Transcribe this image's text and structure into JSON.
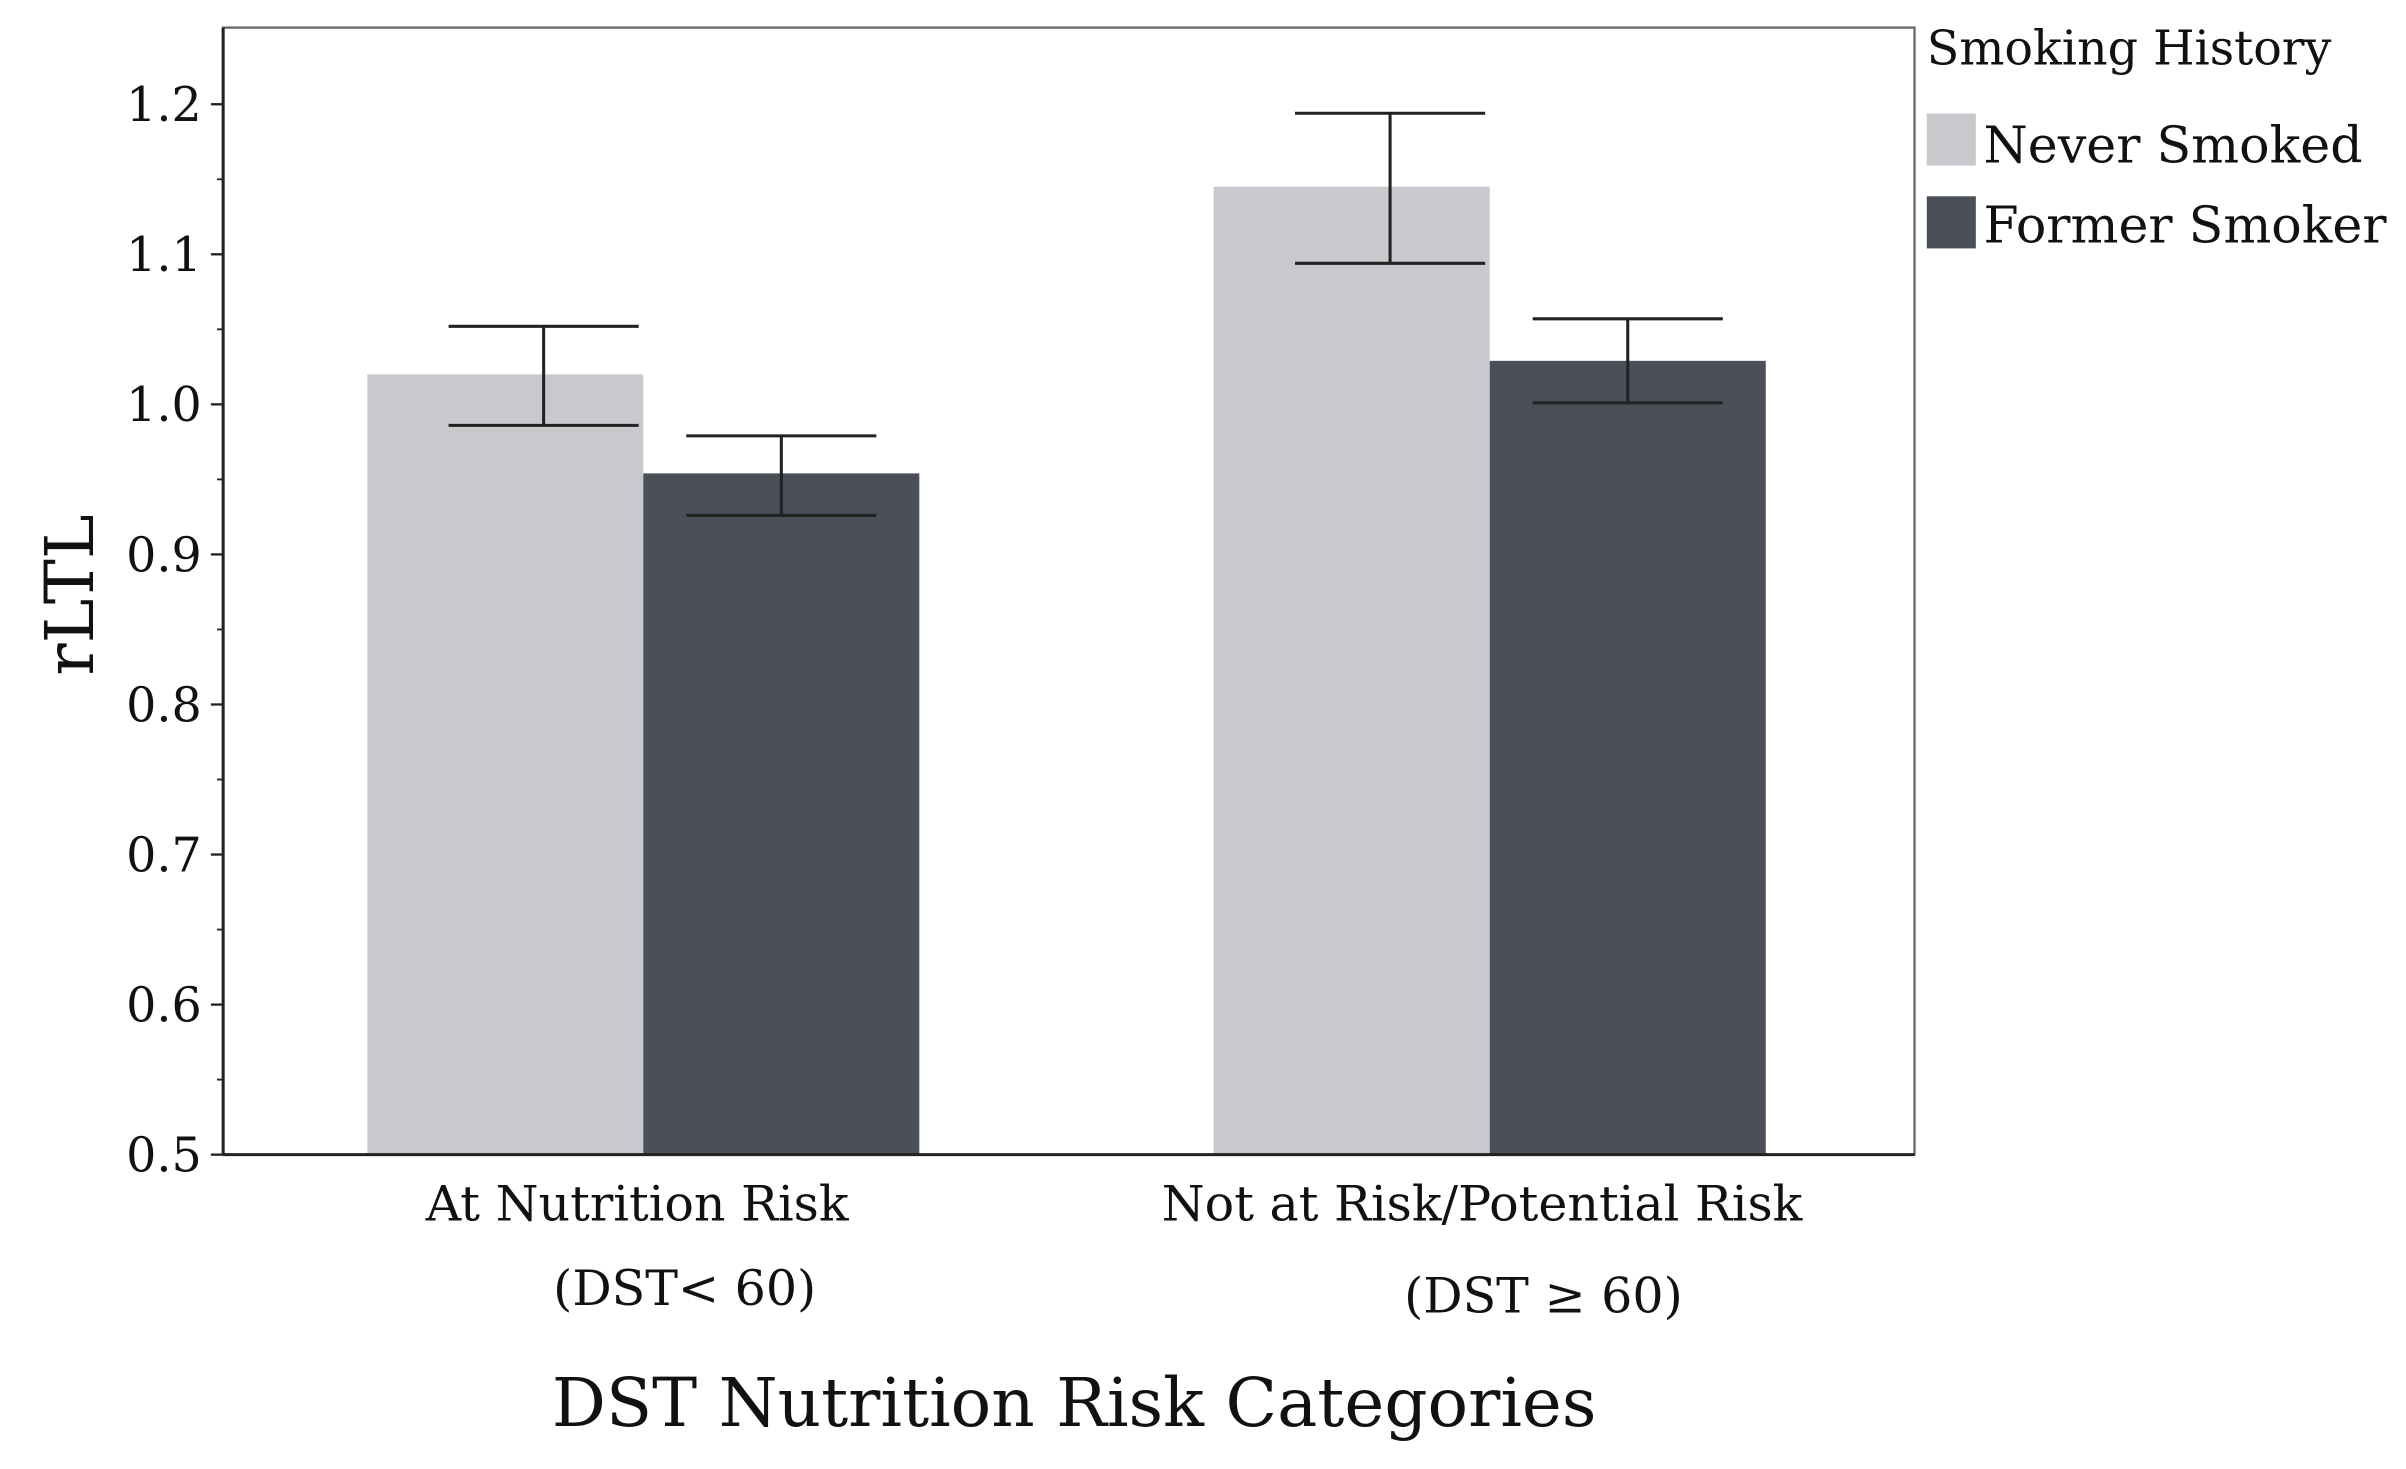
{
  "chart_data": {
    "type": "bar",
    "title": "",
    "xlabel": "DST Nutrition Risk Categories",
    "ylabel": "rLTL",
    "ylim": [
      0.5,
      1.25
    ],
    "yticks": [
      0.5,
      0.6,
      0.7,
      0.8,
      0.9,
      1.0,
      1.1,
      1.2
    ],
    "ytick_labels": [
      "0.5",
      "0.6",
      "0.7",
      "0.8",
      "0.9",
      "1.0",
      "1.1",
      "1.2"
    ],
    "categories": [
      {
        "line1": "At Nutrition Risk",
        "line2": "(DST< 60)"
      },
      {
        "line1": "Not at Risk/Potential Risk",
        "line2": "(DST ≥ 60)"
      }
    ],
    "legend": {
      "title": "Smoking History",
      "placement": "top-right-outside"
    },
    "series": [
      {
        "name": "Never Smoked",
        "color": "#c8c9cc",
        "values": [
          1.02,
          1.145
        ],
        "err_low": [
          0.986,
          1.094
        ],
        "err_high": [
          1.052,
          1.194
        ]
      },
      {
        "name": "Former Smoker",
        "color": "#4a4f58",
        "values": [
          0.954,
          1.029
        ],
        "err_low": [
          0.926,
          1.001
        ],
        "err_high": [
          0.979,
          1.057
        ]
      }
    ],
    "grid": false
  }
}
